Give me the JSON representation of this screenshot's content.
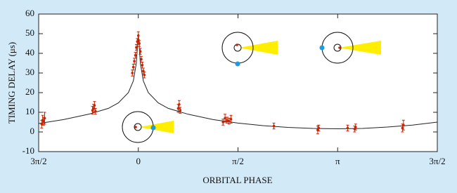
{
  "chart_data": {
    "type": "scatter",
    "x_label": "ORBITAL PHASE",
    "y_label": "TIMING DELAY (μs)",
    "xlim": [
      -1,
      3
    ],
    "ylim": [
      -10,
      60
    ],
    "xticks": [
      {
        "value": -1,
        "label": "3π/2"
      },
      0,
      {
        "value": 1,
        "label": "π/2"
      },
      {
        "value": 2,
        "label": "π"
      },
      {
        "value": 3,
        "label": "3π/2"
      }
    ],
    "yticks": [
      -10,
      0,
      10,
      20,
      30,
      40,
      50,
      60
    ],
    "points": {
      "color": "#cc2200",
      "x": [
        -0.97,
        -0.96,
        -0.95,
        -0.94,
        -0.46,
        -0.45,
        -0.44,
        -0.43,
        -0.06,
        -0.05,
        -0.04,
        -0.03,
        -0.02,
        -0.01,
        0,
        0.01,
        0.02,
        0.03,
        0.04,
        0.05,
        0.06,
        0.4,
        0.41,
        0.42,
        0.85,
        0.87,
        0.89,
        0.91,
        0.93,
        1.36,
        1.8,
        1.81,
        2.1,
        2.17,
        2.18,
        2.65,
        2.66
      ],
      "y": [
        4,
        6,
        5.5,
        7,
        11,
        12,
        13.5,
        10.5,
        30,
        33,
        36,
        39,
        43,
        46,
        49,
        45,
        41,
        37,
        34,
        31,
        29,
        12,
        14,
        11,
        5,
        7,
        6,
        5.5,
        6.5,
        3,
        1,
        2,
        2,
        1.5,
        2.5,
        2,
        3.5
      ],
      "err": [
        2,
        2.5,
        2,
        3,
        2,
        2,
        2,
        1.5,
        1.5,
        1.5,
        1.5,
        1.5,
        1.5,
        1.5,
        2,
        1.5,
        1.5,
        1.5,
        1.5,
        1.5,
        1.5,
        2,
        2,
        1.5,
        1.5,
        2,
        1.5,
        1.5,
        2,
        1.5,
        2,
        1.5,
        1.5,
        1.5,
        1.5,
        2,
        2.5
      ]
    },
    "model": {
      "color": "#222222",
      "x": [
        -1,
        -0.75,
        -0.5,
        -0.3,
        -0.2,
        -0.1,
        -0.05,
        -0.02,
        0,
        0.02,
        0.05,
        0.1,
        0.2,
        0.3,
        0.5,
        0.75,
        1,
        1.25,
        1.5,
        1.75,
        2,
        2.25,
        2.5,
        2.75,
        3
      ],
      "y": [
        4.3,
        6.3,
        9,
        12,
        14.8,
        20,
        26,
        35,
        50,
        35,
        26,
        20,
        14.8,
        12,
        9,
        6.3,
        4.5,
        3.2,
        2.3,
        1.8,
        1.6,
        1.8,
        2.5,
        3.5,
        5
      ]
    }
  }
}
